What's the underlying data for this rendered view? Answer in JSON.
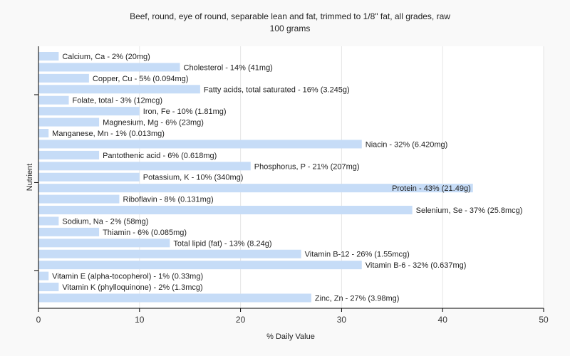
{
  "chart_data": {
    "type": "bar",
    "orientation": "horizontal",
    "title": "Beef, round, eye of round, separable lean and fat, trimmed to 1/8\" fat, all grades, raw",
    "subtitle": "100 grams",
    "xlabel": "% Daily Value",
    "ylabel": "Nutrient",
    "xlim": [
      0,
      50
    ],
    "xticks": [
      0,
      10,
      20,
      30,
      40,
      50
    ],
    "grid": true,
    "bar_color": "#c6dcf7",
    "categories": [
      "Calcium, Ca",
      "Cholesterol",
      "Copper, Cu",
      "Fatty acids, total saturated",
      "Folate, total",
      "Iron, Fe",
      "Magnesium, Mg",
      "Manganese, Mn",
      "Niacin",
      "Pantothenic acid",
      "Phosphorus, P",
      "Potassium, K",
      "Protein",
      "Riboflavin",
      "Selenium, Se",
      "Sodium, Na",
      "Thiamin",
      "Total lipid (fat)",
      "Vitamin B-12",
      "Vitamin B-6",
      "Vitamin E (alpha-tocopherol)",
      "Vitamin K (phylloquinone)",
      "Zinc, Zn"
    ],
    "values": [
      2,
      14,
      5,
      16,
      3,
      10,
      6,
      1,
      32,
      6,
      21,
      10,
      43,
      8,
      37,
      2,
      6,
      13,
      26,
      32,
      1,
      2,
      27
    ],
    "labels": [
      "Calcium, Ca - 2% (20mg)",
      "Cholesterol - 14% (41mg)",
      "Copper, Cu - 5% (0.094mg)",
      "Fatty acids, total saturated - 16% (3.245g)",
      "Folate, total - 3% (12mcg)",
      "Iron, Fe - 10% (1.81mg)",
      "Magnesium, Mg - 6% (23mg)",
      "Manganese, Mn - 1% (0.013mg)",
      "Niacin - 32% (6.420mg)",
      "Pantothenic acid - 6% (0.618mg)",
      "Phosphorus, P - 21% (207mg)",
      "Potassium, K - 10% (340mg)",
      "Protein - 43% (21.49g)",
      "Riboflavin - 8% (0.131mg)",
      "Selenium, Se - 37% (25.8mcg)",
      "Sodium, Na - 2% (58mg)",
      "Thiamin - 6% (0.085mg)",
      "Total lipid (fat) - 13% (8.24g)",
      "Vitamin B-12 - 26% (1.55mcg)",
      "Vitamin B-6 - 32% (0.637mg)",
      "Vitamin E (alpha-tocopherol) - 1% (0.33mg)",
      "Vitamin K (phylloquinone) - 2% (1.3mcg)",
      "Zinc, Zn - 27% (3.98mg)"
    ]
  }
}
